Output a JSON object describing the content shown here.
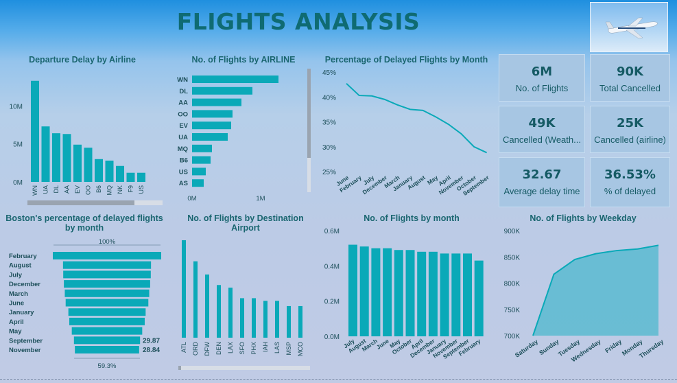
{
  "header": {
    "title": "FLIGHTS ANALYSIS"
  },
  "kpis": [
    {
      "value": "6M",
      "label": "No. of Flights"
    },
    {
      "value": "90K",
      "label": "Total Cancelled"
    },
    {
      "value": "49K",
      "label": "Cancelled (Weath..."
    },
    {
      "value": "25K",
      "label": "Cancelled (airline)"
    },
    {
      "value": "32.67",
      "label": "Average delay time"
    },
    {
      "value": "36.53%",
      "label": "% of delayed"
    }
  ],
  "colors": {
    "bar": "#0aa9b8",
    "accent": "#0f6b72",
    "area": "#5bbbd0"
  },
  "chart_data": [
    {
      "id": "departure-delay",
      "type": "bar",
      "title": "Departure Delay by Airline",
      "categories": [
        "WN",
        "UA",
        "DL",
        "AA",
        "EV",
        "OO",
        "B6",
        "MQ",
        "NK",
        "F9",
        "US"
      ],
      "values": [
        13.3,
        7.3,
        6.4,
        6.3,
        4.9,
        4.5,
        3.0,
        2.8,
        2.1,
        1.2,
        1.2
      ],
      "yticks": [
        "0M",
        "5M",
        "10M"
      ],
      "ylim": [
        0,
        14
      ],
      "unit": "M"
    },
    {
      "id": "flights-by-airline",
      "type": "bar",
      "orientation": "horizontal",
      "title": "No. of Flights by AIRLINE",
      "categories": [
        "WN",
        "DL",
        "AA",
        "OO",
        "EV",
        "UA",
        "MQ",
        "B6",
        "US",
        "AS"
      ],
      "values": [
        1.26,
        0.88,
        0.72,
        0.59,
        0.57,
        0.52,
        0.29,
        0.27,
        0.2,
        0.17
      ],
      "xticks": [
        "0M",
        "1M"
      ],
      "xlim": [
        0,
        1.5
      ],
      "unit": "M"
    },
    {
      "id": "delayed-pct-month",
      "type": "line",
      "title": "Percentage of Delayed Flights by Month",
      "categories": [
        "June",
        "February",
        "July",
        "December",
        "March",
        "January",
        "August",
        "May",
        "April",
        "November",
        "October",
        "September"
      ],
      "values": [
        42.7,
        40.3,
        40.2,
        39.5,
        38.4,
        37.5,
        37.3,
        36.0,
        34.5,
        32.6,
        30.0,
        28.8
      ],
      "yticks": [
        "25%",
        "30%",
        "35%",
        "40%",
        "45%"
      ],
      "ylim": [
        25,
        45
      ]
    },
    {
      "id": "boston-delayed",
      "type": "bar",
      "orientation": "funnel",
      "title": "Boston's percentage of delayed flights by month",
      "categories": [
        "February",
        "August",
        "July",
        "December",
        "March",
        "June",
        "January",
        "April",
        "May",
        "September",
        "November"
      ],
      "values": [
        100,
        81.2,
        80.8,
        79.6,
        77.9,
        76.3,
        71.3,
        69.6,
        65.0,
        61.0,
        59.3
      ],
      "data_labels": {
        "top": "100%",
        "bottom": "59.3%",
        "row9": "29.87",
        "row10": "28.84"
      }
    },
    {
      "id": "flights-destination",
      "type": "bar",
      "title": "No. of Flights by Destination Airport",
      "categories": [
        "ATL",
        "ORD",
        "DFW",
        "DEN",
        "LAX",
        "SFO",
        "PHX",
        "IAH",
        "LAS",
        "MSP",
        "MCO"
      ],
      "values": [
        0.37,
        0.29,
        0.24,
        0.2,
        0.19,
        0.15,
        0.15,
        0.14,
        0.14,
        0.12,
        0.12
      ]
    },
    {
      "id": "flights-by-month",
      "type": "bar",
      "title": "No. of Flights by month",
      "categories": [
        "July",
        "August",
        "March",
        "June",
        "May",
        "October",
        "April",
        "December",
        "January",
        "November",
        "September",
        "February"
      ],
      "values": [
        0.52,
        0.51,
        0.5,
        0.5,
        0.49,
        0.49,
        0.48,
        0.48,
        0.47,
        0.47,
        0.47,
        0.43
      ],
      "yticks": [
        "0.0M",
        "0.2M",
        "0.4M",
        "0.6M"
      ],
      "ylim": [
        0,
        0.6
      ],
      "unit": "M"
    },
    {
      "id": "flights-by-weekday",
      "type": "area",
      "title": "No. of Flights by Weekday",
      "categories": [
        "Saturday",
        "Sunday",
        "Tuesday",
        "Wednesday",
        "Friday",
        "Monday",
        "Thursday"
      ],
      "values": [
        700,
        817,
        845,
        856,
        862,
        865,
        872
      ],
      "yticks": [
        "700K",
        "750K",
        "800K",
        "850K",
        "900K"
      ],
      "ylim": [
        700,
        900
      ],
      "unit": "K"
    }
  ]
}
